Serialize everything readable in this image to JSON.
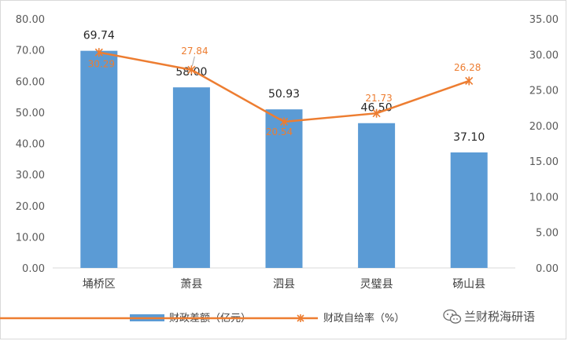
{
  "chart_data": {
    "type": "bar",
    "categories": [
      "埇桥区",
      "萧县",
      "泗县",
      "灵璧县",
      "砀山县"
    ],
    "series": [
      {
        "name": "财政差额（亿元）",
        "type": "bar",
        "axis": "left",
        "color": "#5b9bd5",
        "values": [
          69.74,
          58.0,
          50.93,
          46.5,
          37.1
        ],
        "labels": [
          "69.74",
          "58.00",
          "50.93",
          "46.50",
          "37.10"
        ]
      },
      {
        "name": "财政自给率（%）",
        "type": "line",
        "axis": "right",
        "color": "#ed7d31",
        "values": [
          30.29,
          27.84,
          20.54,
          21.73,
          26.28
        ],
        "labels": [
          "30.29",
          "27.84",
          "20.54",
          "21.73",
          "26.28"
        ]
      }
    ],
    "y_left": {
      "min": 0,
      "max": 80,
      "ticks": [
        0,
        10,
        20,
        30,
        40,
        50,
        60,
        70,
        80
      ],
      "tick_labels": [
        "0.00",
        "10.00",
        "20.00",
        "30.00",
        "40.00",
        "50.00",
        "60.00",
        "70.00",
        "80.00"
      ]
    },
    "y_right": {
      "min": 0,
      "max": 35,
      "ticks": [
        0,
        5,
        10,
        15,
        20,
        25,
        30,
        35
      ],
      "tick_labels": [
        "0.00",
        "5.00",
        "10.00",
        "15.00",
        "20.00",
        "25.00",
        "30.00",
        "35.00"
      ]
    },
    "title": "",
    "xlabel": "",
    "grid": false,
    "legend_position": "bottom"
  },
  "watermark": {
    "icon": "wechat-icon",
    "text": "兰财税海研语"
  }
}
